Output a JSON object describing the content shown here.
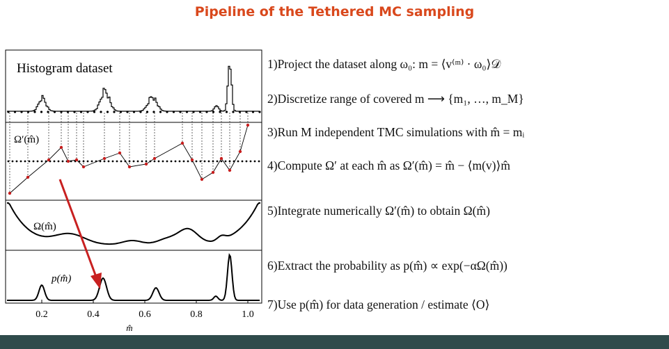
{
  "header": {
    "title": "Pipeline of the Tethered MC sampling"
  },
  "figure": {
    "panels": [
      "Histogram dataset",
      "Ω′(m̂)",
      "Ω(m̂)",
      "p(m̂)"
    ],
    "axis": {
      "ticks": [
        "0.2",
        "0.4",
        "0.6",
        "0.8",
        "1.0"
      ],
      "label": "m̂"
    }
  },
  "steps": [
    "1)Project the dataset along ω₀:  m = ⟨v⁽ᵐ⁾ · ω₀⟩𝒟",
    "2)Discretize range of covered m ⟶ {m₁, …, m_M}",
    "3)Run M independent TMC simulations with m̂ = mᵢ",
    "4)Compute Ω′ at each m̂ as Ω′(m̂) = m̂ − ⟨m(v)⟩m̂",
    "5)Integrate numerically Ω′(m̂) to obtain Ω(m̂)",
    "6)Extract the probability as p(m̂) ∝ exp(−αΩ(m̂))",
    "7)Use p(m̂) for data generation / estimate ⟨O⟩"
  ]
}
